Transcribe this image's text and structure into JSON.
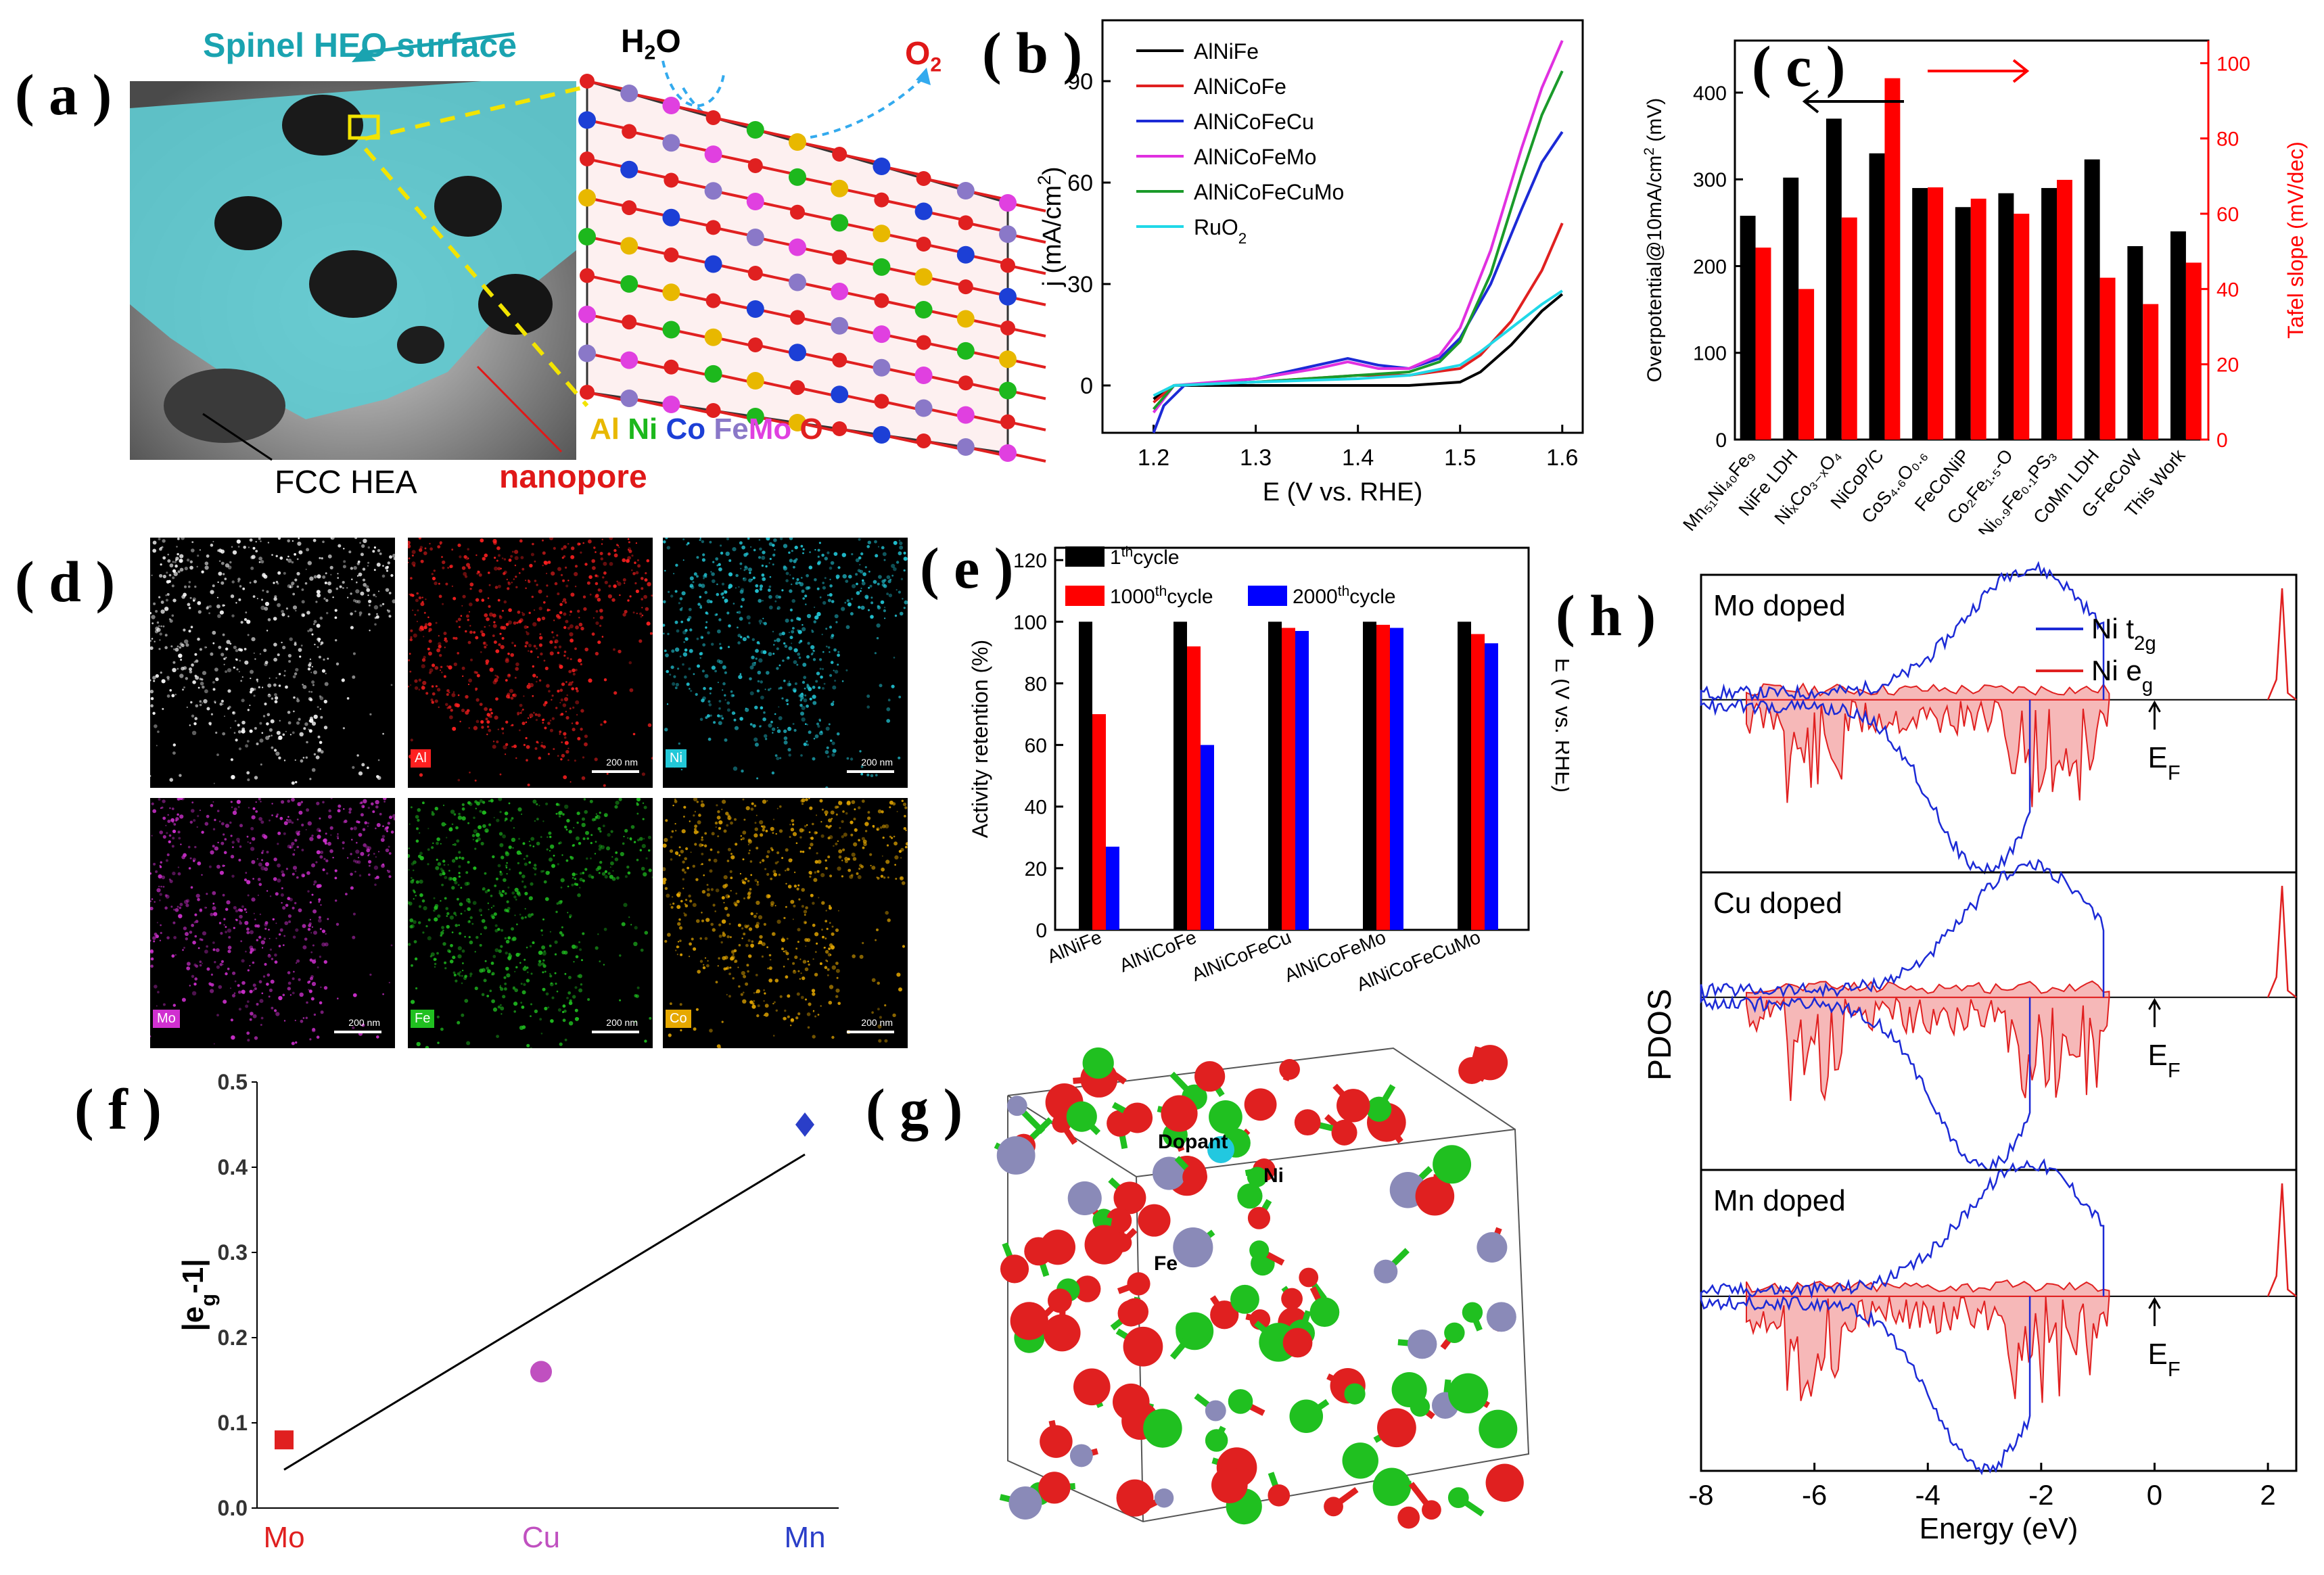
{
  "panels": {
    "a": {
      "letter": "( a )",
      "labels": {
        "surface": "Spinel HEO surface",
        "water": "H",
        "water_sub": "2",
        "water_tail": "O",
        "oxygen": "O",
        "oxygen_sub": "2",
        "fcc": "FCC HEA",
        "nanopore": "nanopore"
      },
      "elements": [
        {
          "symbol": "Al",
          "color": "#e8b800"
        },
        {
          "symbol": "Ni",
          "color": "#1db81d"
        },
        {
          "symbol": "Co",
          "color": "#1c3fd6"
        },
        {
          "symbol": "Fe",
          "color": "#8a78c8"
        },
        {
          "symbol": "Mo",
          "color": "#e040e0"
        },
        {
          "symbol": "O",
          "color": "#e02020"
        }
      ],
      "colors": {
        "surface": "#1aa3b0",
        "nanopore": "#e01818"
      }
    },
    "b": {
      "letter": "( b )"
    },
    "c": {
      "letter": "( c )"
    },
    "d": {
      "letter": "( d )",
      "tiles": [
        {
          "label": "",
          "color": "#ffffff"
        },
        {
          "label": "Al",
          "color": "#ff2020"
        },
        {
          "label": "Ni",
          "color": "#22c8d8"
        },
        {
          "label": "Mo",
          "color": "#d030d0"
        },
        {
          "label": "Fe",
          "color": "#20c020"
        },
        {
          "label": "Co",
          "color": "#e6a800"
        }
      ],
      "scale_text": "200 nm"
    },
    "e": {
      "letter": "( e )"
    },
    "f": {
      "letter": "( f )"
    },
    "g": {
      "letter": "( g )",
      "labels": {
        "dopant": "Dopant",
        "ni": "Ni",
        "fe": "Fe"
      }
    },
    "h": {
      "letter": "( h )"
    }
  },
  "chart_data": [
    {
      "panel": "b",
      "type": "line",
      "xlabel": "E (V vs. RHE)",
      "ylabel": "j (mA/cm",
      "ylabel_sup": "2",
      "ylabel_tail": ")",
      "xlim": [
        1.15,
        1.62
      ],
      "ylim": [
        -14,
        108
      ],
      "xticks": [
        "1.2",
        "1.3",
        "1.4",
        "1.5",
        "1.6"
      ],
      "yticks": [
        "0",
        "30",
        "60",
        "90"
      ],
      "series": [
        {
          "name": "AlNiFe",
          "color": "#000000",
          "x": [
            1.2,
            1.22,
            1.3,
            1.4,
            1.45,
            1.5,
            1.52,
            1.55,
            1.58,
            1.6
          ],
          "y": [
            -4,
            0,
            0,
            0,
            0,
            1,
            4,
            12,
            22,
            27
          ]
        },
        {
          "name": "AlNiCoFe",
          "color": "#e02020",
          "x": [
            1.2,
            1.22,
            1.3,
            1.4,
            1.45,
            1.5,
            1.52,
            1.55,
            1.58,
            1.6
          ],
          "y": [
            -5,
            0,
            1,
            3,
            3,
            5,
            9,
            19,
            34,
            48
          ]
        },
        {
          "name": "AlNiCoFeCu",
          "color": "#1c2ad6",
          "x": [
            1.2,
            1.21,
            1.23,
            1.3,
            1.36,
            1.39,
            1.42,
            1.45,
            1.48,
            1.5,
            1.53,
            1.56,
            1.58,
            1.6
          ],
          "y": [
            -14,
            -6,
            0,
            2,
            6,
            8,
            6,
            5,
            8,
            14,
            30,
            52,
            66,
            75
          ]
        },
        {
          "name": "AlNiCoFeMo",
          "color": "#e030e0",
          "x": [
            1.2,
            1.22,
            1.3,
            1.36,
            1.39,
            1.42,
            1.45,
            1.48,
            1.5,
            1.53,
            1.56,
            1.58,
            1.6
          ],
          "y": [
            -8,
            0,
            2,
            5,
            7,
            5,
            5,
            9,
            17,
            40,
            70,
            88,
            102
          ]
        },
        {
          "name": "AlNiCoFeCuMo",
          "color": "#1a9a2a",
          "x": [
            1.2,
            1.22,
            1.3,
            1.4,
            1.45,
            1.48,
            1.5,
            1.53,
            1.56,
            1.58,
            1.6
          ],
          "y": [
            -7,
            0,
            1,
            3,
            4,
            7,
            13,
            33,
            62,
            80,
            93
          ]
        },
        {
          "name": "RuO",
          "name_sub": "2",
          "color": "#20d8e8",
          "x": [
            1.2,
            1.22,
            1.3,
            1.4,
            1.45,
            1.5,
            1.52,
            1.55,
            1.58,
            1.6
          ],
          "y": [
            -3,
            0,
            1,
            2,
            3,
            6,
            10,
            17,
            24,
            28
          ]
        }
      ]
    },
    {
      "panel": "c",
      "type": "bar",
      "ylabel": "Overpotential@10mA/cm",
      "ylabel_sup": "2",
      "ylabel_tail": " (mV)",
      "ylabel_right": "Tafel slope (mV/dec)",
      "ylim": [
        0,
        460
      ],
      "ylim_right": [
        0,
        106
      ],
      "yticks": [
        "0",
        "100",
        "200",
        "300",
        "400"
      ],
      "yticks_right": [
        "0",
        "20",
        "40",
        "60",
        "80",
        "100"
      ],
      "categories": [
        "Mn51Ni40Fe9",
        "NiFe LDH",
        "NixCo3-xO4",
        "NiCoP/C",
        "CoS4.6O0.6",
        "FeCoNiP",
        "Co2Fe1.5-O",
        "Ni0.9Fe0.1PS3",
        "CoMn LDH",
        "G-FeCoW",
        "This Work"
      ],
      "category_labels": [
        "Mn₅₁Ni₄₀Fe₉",
        "NiFe LDH",
        "NiₓCo₃₋ₓO₄",
        "NiCoP/C",
        "CoS₄.₆O₀.₆",
        "FeCoNiP",
        "Co₂Fe₁.₅-O",
        "Ni₀.₉Fe₀.₁PS₃",
        "CoMn LDH",
        "G-FeCoW",
        "This Work"
      ],
      "series": [
        {
          "name": "Overpotential",
          "color": "#000000",
          "axis": "left",
          "values": [
            258,
            302,
            370,
            330,
            290,
            268,
            284,
            290,
            323,
            223,
            240
          ]
        },
        {
          "name": "Tafel slope",
          "color": "#ff0000",
          "axis": "right",
          "values": [
            51,
            40,
            59,
            96,
            67,
            64,
            60,
            69,
            43,
            36,
            47
          ]
        }
      ],
      "colors": {
        "right_axis": "#ff0000"
      }
    },
    {
      "panel": "e",
      "type": "bar",
      "ylabel": "Activity retention (%)",
      "ylabel_right": "E (V vs. RHE)",
      "ylim": [
        0,
        124
      ],
      "yticks": [
        "0",
        "20",
        "40",
        "60",
        "80",
        "100",
        "120"
      ],
      "categories": [
        "AlNiFe",
        "AlNiCoFe",
        "AlNiCoFeCu",
        "AlNiCoFeMo",
        "AlNiCoFeCuMo"
      ],
      "series": [
        {
          "name": "1",
          "name_sup": "th",
          "name_tail": "cycle",
          "color": "#000000",
          "values": [
            100,
            100,
            100,
            100,
            100
          ]
        },
        {
          "name": "1000",
          "name_sup": "th",
          "name_tail": "cycle",
          "color": "#ff0000",
          "values": [
            70,
            92,
            98,
            99,
            96
          ]
        },
        {
          "name": "2000",
          "name_sup": "th",
          "name_tail": "cycle",
          "color": "#0000ff",
          "values": [
            27,
            60,
            97,
            98,
            93
          ]
        }
      ]
    },
    {
      "panel": "f",
      "type": "scatter",
      "ylabel": "|e",
      "ylabel_sub": "g",
      "ylabel_tail": "-1|",
      "ylim": [
        0,
        0.5
      ],
      "yticks": [
        "0.0",
        "0.1",
        "0.2",
        "0.3",
        "0.4",
        "0.5"
      ],
      "categories": [
        "Mo",
        "Cu",
        "Mn"
      ],
      "points": [
        {
          "x": "Mo",
          "y": 0.08,
          "color": "#e02020",
          "marker": "square"
        },
        {
          "x": "Cu",
          "y": 0.16,
          "color": "#c050c0",
          "marker": "circle"
        },
        {
          "x": "Mn",
          "y": 0.45,
          "color": "#2a3ec8",
          "marker": "diamond"
        }
      ],
      "fit": {
        "y_start": 0.045,
        "y_end": 0.415,
        "color": "#000000"
      }
    },
    {
      "panel": "h",
      "type": "line",
      "xlabel": "Energy (eV)",
      "ylabel": "PDOS",
      "xlim": [
        -8,
        2.5
      ],
      "xticks": [
        "-8",
        "-6",
        "-4",
        "-2",
        "0",
        "2"
      ],
      "legend": [
        {
          "name": "Ni t",
          "sub": "2g",
          "color": "#1c2ad6"
        },
        {
          "name": "Ni e",
          "sub": "g",
          "color": "#e02020"
        }
      ],
      "subplots": [
        {
          "title": "Mo doped",
          "fermi_label": "E",
          "fermi_sub": "F"
        },
        {
          "title": "Cu doped",
          "fermi_label": "E",
          "fermi_sub": "F"
        },
        {
          "title": "Mn doped",
          "fermi_label": "E",
          "fermi_sub": "F"
        }
      ]
    }
  ]
}
